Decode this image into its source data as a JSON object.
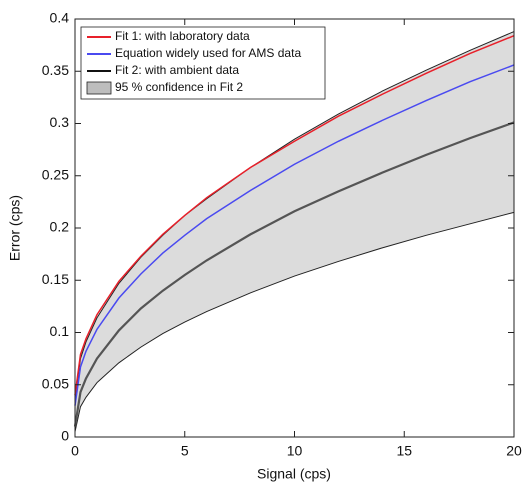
{
  "chart_data": {
    "type": "line",
    "xlabel": "Signal (cps)",
    "ylabel": "Error (cps)",
    "x": [
      0,
      0.25,
      0.5,
      1,
      2,
      3,
      4,
      5,
      6,
      8,
      10,
      12,
      14,
      16,
      18,
      20
    ],
    "band": {
      "name": "95 % confidence in Fit 2",
      "color": "#dcdcdc",
      "upper": [
        0.035,
        0.075,
        0.091,
        0.114,
        0.147,
        0.172,
        0.193,
        0.212,
        0.228,
        0.258,
        0.285,
        0.309,
        0.331,
        0.351,
        0.37,
        0.388
      ],
      "lower": [
        0.005,
        0.029,
        0.038,
        0.052,
        0.071,
        0.086,
        0.099,
        0.11,
        0.12,
        0.138,
        0.154,
        0.168,
        0.181,
        0.193,
        0.204,
        0.215
      ]
    },
    "series": [
      {
        "name": "Fit 1: with laboratory data",
        "color": "#e8202a",
        "values": [
          0.04,
          0.079,
          0.094,
          0.117,
          0.149,
          0.173,
          0.194,
          0.212,
          0.229,
          0.258,
          0.283,
          0.307,
          0.328,
          0.348,
          0.367,
          0.384
        ]
      },
      {
        "name": "Equation widely used for AMS data",
        "color": "#4a4af0",
        "values": [
          0.03,
          0.067,
          0.082,
          0.103,
          0.133,
          0.156,
          0.176,
          0.193,
          0.209,
          0.236,
          0.261,
          0.283,
          0.303,
          0.322,
          0.34,
          0.356
        ]
      },
      {
        "name": "Fit 2: with ambient data",
        "color": "#555555",
        "values": [
          0.01,
          0.043,
          0.056,
          0.075,
          0.102,
          0.123,
          0.14,
          0.155,
          0.169,
          0.194,
          0.216,
          0.235,
          0.253,
          0.27,
          0.286,
          0.301
        ]
      }
    ],
    "xlim": [
      0,
      20
    ],
    "xticks": [
      0,
      5,
      10,
      15,
      20
    ],
    "ylim": [
      0,
      0.4
    ],
    "yticks": [
      0,
      0.05,
      0.1,
      0.15,
      0.2,
      0.25,
      0.3,
      0.35,
      0.4
    ],
    "legend": "upper-left"
  }
}
